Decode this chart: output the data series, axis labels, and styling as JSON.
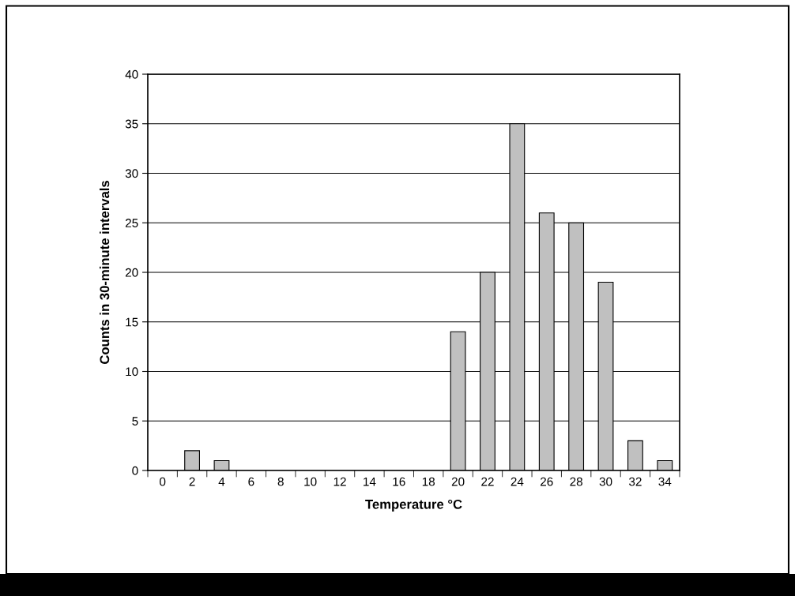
{
  "chart_data": {
    "type": "bar",
    "xlabel": "Temperature °C",
    "ylabel": "Counts in 30-minute intervals",
    "categories": [
      "0",
      "2",
      "4",
      "6",
      "8",
      "10",
      "12",
      "14",
      "16",
      "18",
      "20",
      "22",
      "24",
      "26",
      "28",
      "30",
      "32",
      "34"
    ],
    "values": [
      0,
      2,
      1,
      0,
      0,
      0,
      0,
      0,
      0,
      0,
      14,
      20,
      35,
      26,
      25,
      19,
      3,
      1
    ],
    "color": "#c0c0c0",
    "ylim": [
      0,
      40
    ],
    "yticks": [
      0,
      5,
      10,
      15,
      20,
      25,
      30,
      35,
      40
    ],
    "grid": "y"
  }
}
